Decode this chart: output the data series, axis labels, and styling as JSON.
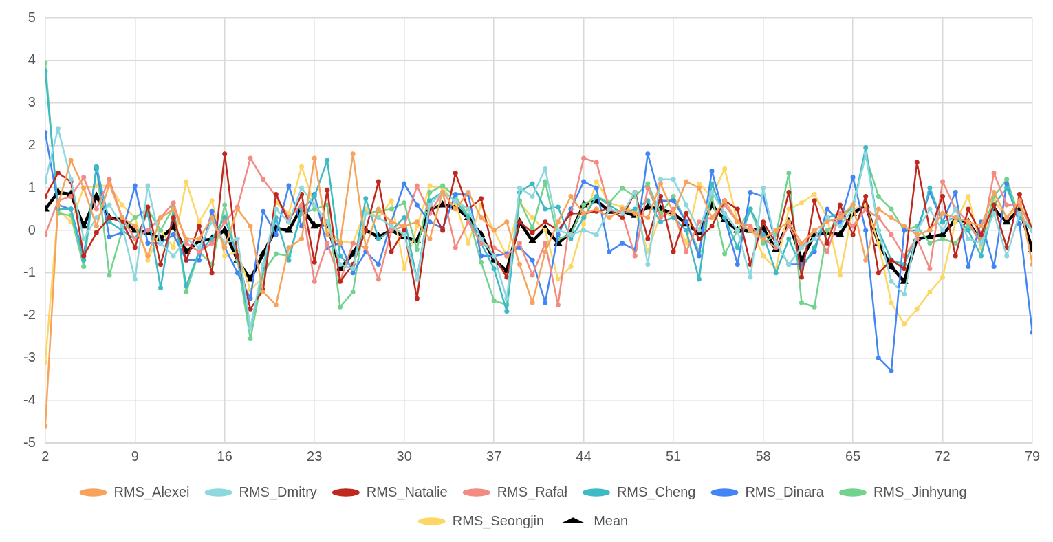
{
  "chart_data": {
    "type": "line",
    "x": [
      2,
      3,
      4,
      5,
      6,
      7,
      8,
      9,
      10,
      11,
      12,
      13,
      14,
      15,
      16,
      17,
      18,
      19,
      20,
      21,
      22,
      23,
      24,
      25,
      26,
      27,
      28,
      29,
      30,
      31,
      32,
      33,
      34,
      35,
      36,
      37,
      38,
      39,
      40,
      41,
      42,
      43,
      44,
      45,
      46,
      47,
      48,
      49,
      50,
      51,
      52,
      53,
      54,
      55,
      56,
      57,
      58,
      59,
      60,
      61,
      62,
      63,
      64,
      65,
      66,
      67,
      68,
      69,
      70,
      71,
      72,
      73,
      74,
      75,
      76,
      77,
      78,
      79
    ],
    "xlim": [
      2,
      79
    ],
    "xticks": [
      2,
      9,
      16,
      23,
      30,
      37,
      44,
      51,
      58,
      65,
      72,
      79
    ],
    "ylim": [
      -5,
      5
    ],
    "yticks": [
      -5,
      -4,
      -3,
      -2,
      -1,
      0,
      1,
      2,
      3,
      4,
      5
    ],
    "grid": true,
    "legend": "bottom",
    "marker": "circle",
    "series": [
      {
        "name": "RMS_Alexei",
        "color": "#f7a35c",
        "values": [
          -4.6,
          0.6,
          1.65,
          1.0,
          0.1,
          1.1,
          0.3,
          0.1,
          -0.6,
          0.3,
          0.5,
          -0.2,
          -0.2,
          0.3,
          -0.4,
          0.5,
          0.1,
          -1.45,
          -1.75,
          -0.4,
          -0.2,
          1.7,
          -0.1,
          -0.3,
          1.8,
          -0.4,
          0.5,
          0.2,
          0.1,
          0.2,
          -0.2,
          0.9,
          0.5,
          0.9,
          0.3,
          0.0,
          0.2,
          -0.8,
          -1.7,
          -0.5,
          0.2,
          0.8,
          0.4,
          0.5,
          0.3,
          0.5,
          0.4,
          0.3,
          1.1,
          0.4,
          1.15,
          1.0,
          0.3,
          0.7,
          0.2,
          0.0,
          -0.2,
          0.0,
          0.2,
          -0.3,
          0.0,
          0.2,
          0.3,
          0.6,
          -0.7,
          0.5,
          0.3,
          0.1,
          -0.1,
          0.0,
          0.4,
          0.3,
          0.2,
          0.1,
          0.9,
          0.3,
          0.7,
          -0.8
        ]
      },
      {
        "name": "RMS_Dmitry",
        "color": "#8dd7de",
        "values": [
          1.15,
          2.4,
          1.2,
          -0.2,
          0.3,
          0.6,
          0.1,
          -1.15,
          1.05,
          -0.3,
          -0.6,
          -0.2,
          -0.4,
          0.2,
          -0.3,
          -0.2,
          -2.3,
          -0.8,
          0.5,
          0.2,
          1.0,
          0.6,
          0.2,
          -0.8,
          -0.9,
          0.4,
          0.3,
          0.1,
          -0.1,
          -1.15,
          0.6,
          0.9,
          0.7,
          0.5,
          -0.2,
          -0.6,
          -1.6,
          1.0,
          0.8,
          1.45,
          0.0,
          -0.1,
          0.0,
          -0.1,
          0.5,
          0.4,
          0.9,
          -0.8,
          1.2,
          1.2,
          0.6,
          0.0,
          0.9,
          0.4,
          0.0,
          -1.1,
          1.0,
          -0.3,
          -0.8,
          -0.4,
          -0.2,
          0.3,
          0.1,
          0.5,
          1.8,
          0.0,
          -1.2,
          -1.5,
          0.0,
          0.5,
          0.0,
          0.5,
          -0.2,
          -0.3,
          0.4,
          -0.6,
          0.4,
          0.0
        ]
      },
      {
        "name": "RMS_Natalie",
        "color": "#c0281e",
        "values": [
          0.8,
          1.35,
          1.15,
          -0.6,
          -0.05,
          0.3,
          0.2,
          -0.4,
          0.55,
          -0.8,
          0.3,
          -0.7,
          0.1,
          -1.0,
          1.8,
          -0.6,
          -1.85,
          -1.4,
          0.85,
          0.2,
          0.85,
          -0.75,
          0.95,
          -1.2,
          -0.8,
          0.0,
          1.15,
          -0.5,
          0.0,
          -1.6,
          0.6,
          0.0,
          1.35,
          0.5,
          0.75,
          -0.6,
          -1.1,
          0.2,
          -0.05,
          0.2,
          0.0,
          0.4,
          0.4,
          0.45,
          0.5,
          0.3,
          0.9,
          -0.2,
          0.8,
          -0.5,
          0.4,
          -0.2,
          0.1,
          0.7,
          0.5,
          -0.8,
          0.2,
          -0.3,
          0.9,
          -1.1,
          0.7,
          -0.3,
          0.6,
          -0.1,
          0.8,
          -1.0,
          -0.7,
          -0.9,
          1.6,
          0.0,
          0.8,
          -0.6,
          0.5,
          -0.1,
          0.6,
          -0.4,
          0.85,
          0.0
        ]
      },
      {
        "name": "RMS_Rafał",
        "color": "#f28b82",
        "values": [
          -0.1,
          0.7,
          0.8,
          1.25,
          0.5,
          1.2,
          0.3,
          -0.2,
          0.0,
          0.3,
          0.65,
          -0.3,
          -0.5,
          -0.3,
          0.2,
          0.55,
          1.7,
          1.2,
          0.8,
          0.3,
          0.6,
          -1.2,
          -0.3,
          -1.2,
          -0.3,
          -0.4,
          -1.15,
          0.0,
          0.1,
          1.05,
          0.4,
          0.9,
          -0.4,
          0.2,
          -0.3,
          -0.4,
          -0.6,
          -0.3,
          -1.05,
          -0.3,
          -1.75,
          0.4,
          1.7,
          1.6,
          0.5,
          0.4,
          -0.6,
          1.0,
          0.3,
          0.5,
          -0.5,
          0.2,
          0.3,
          0.6,
          0.2,
          0.1,
          -0.2,
          -0.4,
          0.1,
          -0.4,
          0.0,
          -0.5,
          0.4,
          0.1,
          0.5,
          0.3,
          -0.1,
          -0.6,
          -0.2,
          -0.9,
          1.15,
          0.5,
          0.2,
          -0.3,
          1.35,
          0.6,
          0.6,
          0.0
        ]
      },
      {
        "name": "RMS_Cheng",
        "color": "#3dbbc5",
        "values": [
          3.75,
          0.5,
          0.5,
          -0.7,
          1.5,
          0.2,
          0.0,
          -0.2,
          0.4,
          -1.35,
          0.5,
          -1.3,
          -0.5,
          -0.2,
          0.3,
          -0.6,
          -2.3,
          -0.9,
          0.3,
          -0.7,
          0.5,
          0.8,
          1.65,
          -0.6,
          -0.9,
          0.75,
          -0.2,
          0.0,
          0.3,
          -1.15,
          0.7,
          0.9,
          0.7,
          0.3,
          -0.3,
          -0.9,
          -1.9,
          0.9,
          1.1,
          0.5,
          0.55,
          -0.2,
          0.3,
          0.8,
          0.6,
          0.4,
          0.5,
          0.7,
          0.2,
          0.3,
          0.0,
          -1.15,
          1.1,
          0.3,
          -0.4,
          0.5,
          -0.1,
          -1.0,
          -0.2,
          -0.9,
          -0.4,
          0.3,
          0.4,
          0.5,
          1.95,
          0.0,
          -0.7,
          -0.8,
          -0.1,
          1.0,
          0.2,
          0.3,
          0.0,
          -0.6,
          0.6,
          1.0,
          0.3,
          0.0
        ]
      },
      {
        "name": "RMS_Dinara",
        "color": "#4285f4",
        "values": [
          2.3,
          0.6,
          0.5,
          -0.6,
          1.45,
          -0.15,
          -0.05,
          1.05,
          -0.3,
          -0.3,
          -0.1,
          -0.7,
          -0.7,
          0.45,
          -0.4,
          -1.0,
          -1.6,
          0.45,
          -0.1,
          1.05,
          0.1,
          0.85,
          -0.4,
          -0.3,
          -1.0,
          -0.5,
          -0.8,
          0.2,
          1.1,
          0.6,
          0.2,
          0.05,
          0.85,
          0.85,
          -0.6,
          -0.6,
          -0.55,
          -0.4,
          -0.7,
          -1.7,
          -0.1,
          0.5,
          1.15,
          1.0,
          -0.5,
          -0.3,
          -0.45,
          1.8,
          0.7,
          0.7,
          0.2,
          -0.6,
          1.4,
          0.3,
          -0.8,
          0.9,
          0.8,
          -0.3,
          -0.8,
          -0.8,
          -0.5,
          0.5,
          0.2,
          1.25,
          0.0,
          -3.0,
          -3.3,
          0.0,
          0.0,
          0.9,
          0.2,
          0.9,
          -0.85,
          0.2,
          -0.85,
          1.1,
          0.15,
          -2.4
        ]
      },
      {
        "name": "RMS_Jinhyung",
        "color": "#72d38e",
        "values": [
          3.95,
          0.4,
          0.35,
          -0.85,
          1.5,
          -1.05,
          0.0,
          0.3,
          0.5,
          0.0,
          0.55,
          -1.45,
          -0.5,
          -0.8,
          0.6,
          -0.7,
          -2.55,
          -1.0,
          -0.55,
          -0.6,
          0.4,
          0.5,
          0.6,
          -1.8,
          -1.45,
          0.4,
          0.45,
          0.5,
          0.65,
          -0.45,
          0.9,
          1.05,
          0.8,
          0.35,
          -0.75,
          -1.65,
          -1.75,
          0.7,
          0.05,
          1.15,
          -0.2,
          -0.1,
          0.6,
          0.8,
          0.65,
          1.0,
          0.8,
          1.1,
          0.4,
          0.8,
          0.2,
          -0.5,
          0.8,
          -0.55,
          0.0,
          0.5,
          -0.3,
          -0.1,
          1.35,
          -1.7,
          -1.8,
          0.0,
          0.2,
          0.6,
          1.75,
          0.8,
          0.5,
          0.0,
          0.1,
          -0.3,
          -0.2,
          -0.3,
          0.1,
          -0.2,
          0.8,
          1.2,
          0.3,
          0.0
        ]
      },
      {
        "name": "RMS_Seongjin",
        "color": "#fdd663",
        "values": [
          -3.1,
          0.5,
          0.2,
          1.0,
          1.05,
          1.05,
          0.6,
          0.3,
          -0.7,
          0.0,
          -0.4,
          1.15,
          0.2,
          0.7,
          -0.6,
          -0.5,
          -1.4,
          -1.1,
          0.65,
          0.4,
          1.5,
          0.6,
          0.0,
          -0.25,
          -0.3,
          0.5,
          0.3,
          0.7,
          -0.9,
          0.1,
          1.05,
          1.0,
          0.65,
          -0.3,
          0.6,
          0.0,
          -0.6,
          0.65,
          0.3,
          0.0,
          -1.15,
          -0.85,
          0.15,
          1.15,
          0.65,
          0.55,
          0.45,
          -0.5,
          0.4,
          0.35,
          -0.3,
          1.1,
          0.8,
          1.45,
          0.2,
          0.1,
          -0.6,
          -0.9,
          0.5,
          0.65,
          0.85,
          0.3,
          -1.05,
          0.5,
          0.6,
          -0.3,
          -1.7,
          -2.2,
          -1.85,
          -1.45,
          -1.1,
          0.2,
          0.8,
          -0.4,
          0.7,
          0.3,
          0.6,
          0.1
        ]
      },
      {
        "name": "Mean",
        "color": "#000000",
        "marker": "triangle",
        "values": [
          0.5,
          0.9,
          0.85,
          0.1,
          0.8,
          0.3,
          0.25,
          0.0,
          -0.05,
          -0.2,
          0.1,
          -0.5,
          -0.25,
          -0.2,
          0.0,
          -0.7,
          -1.15,
          -0.55,
          0.05,
          0.0,
          0.55,
          0.1,
          0.15,
          -0.9,
          -0.55,
          0.0,
          -0.15,
          0.0,
          -0.15,
          -0.25,
          0.5,
          0.6,
          0.55,
          0.3,
          -0.1,
          -0.7,
          -0.95,
          0.2,
          -0.25,
          0.05,
          -0.3,
          -0.05,
          0.6,
          0.7,
          0.45,
          0.45,
          0.35,
          0.55,
          0.5,
          0.4,
          0.15,
          -0.05,
          0.6,
          0.25,
          0.0,
          0.0,
          0.05,
          -0.45,
          0.2,
          -0.7,
          -0.1,
          -0.05,
          -0.1,
          0.4,
          0.6,
          -0.3,
          -0.85,
          -1.2,
          -0.2,
          -0.15,
          -0.1,
          0.25,
          0.2,
          -0.25,
          0.5,
          0.2,
          0.5,
          -0.45
        ]
      }
    ]
  }
}
